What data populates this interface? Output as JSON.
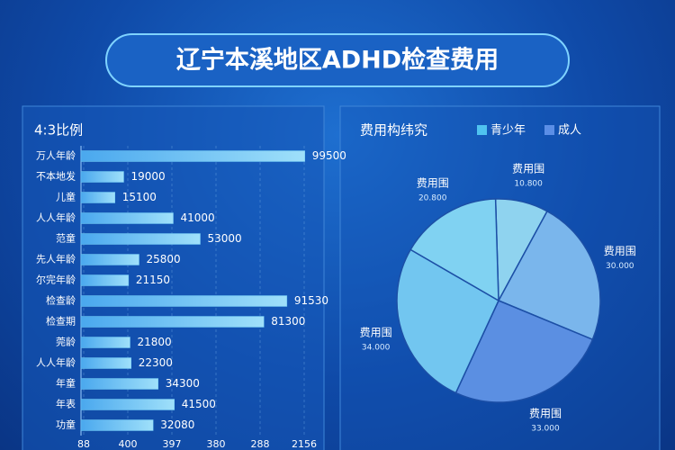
{
  "page_title": "辽宁本溪地区ADHD检查费用",
  "chart_data": [
    {
      "type": "bar",
      "orientation": "horizontal",
      "title": "4:3比例",
      "categories": [
        "万人年龄",
        "不本地发",
        "儿童",
        "人人年龄",
        "范童",
        "先人年龄",
        "尔完年龄",
        "检查龄",
        "检查期",
        "莞龄",
        "人人年龄",
        "年童",
        "年表",
        "功童"
      ],
      "values": [
        99500,
        19000,
        15100,
        41000,
        53000,
        25800,
        21150,
        91530,
        81300,
        21800,
        22300,
        34300,
        41500,
        32080
      ],
      "color": "#6cc6f2",
      "xlim": [
        0,
        100000
      ],
      "x_axis_labels": [
        "88",
        "400",
        "397",
        "380",
        "288",
        "2156"
      ],
      "grid": true
    },
    {
      "type": "pie",
      "title": "费用构纬究",
      "series": [
        {
          "name": "青少年",
          "color": "#4fc3f0"
        },
        {
          "name": "成人",
          "color": "#5b8ee6"
        }
      ],
      "categories": [
        "费用围",
        "费用围",
        "费用围",
        "费用围",
        "费用围"
      ],
      "values": [
        10.8,
        30,
        33,
        34,
        20.8
      ],
      "value_labels": [
        "10.800",
        "30.000",
        "33.000",
        "34.000",
        "20.800"
      ],
      "colors": [
        "#8fd3ef",
        "#7ab6ec",
        "#5b8fe2",
        "#72c6f0",
        "#80d2f2"
      ]
    }
  ]
}
